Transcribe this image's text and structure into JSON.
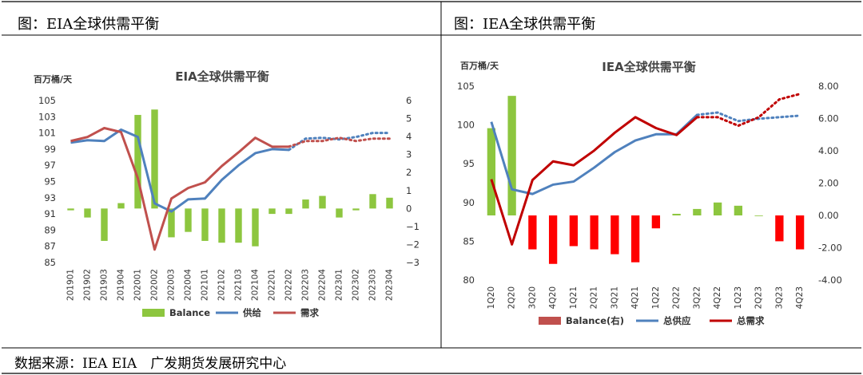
{
  "panel_titles": {
    "left": "图：EIA全球供需平衡",
    "right": "图：IEA全球供需平衡"
  },
  "footer": {
    "source": "数据来源：IEA EIA　广发期货发展研究中心"
  },
  "colors": {
    "green": "#8DC63F",
    "blue": "#4F81BD",
    "red_line": "#C0504D",
    "red_bar": "#FF0000",
    "dark_red": "#C00000"
  },
  "chart_data": [
    {
      "type": "bar+line",
      "title": "EIA全球供需平衡",
      "ylabel": "百万桶/天",
      "categories": [
        "201901",
        "201902",
        "201903",
        "201904",
        "202001",
        "202002",
        "202003",
        "202004",
        "202101",
        "202102",
        "202103",
        "202104",
        "202201",
        "202202",
        "202203",
        "202204",
        "202301",
        "202302",
        "202303",
        "202304"
      ],
      "ylim": [
        85,
        105
      ],
      "y_ticks": [
        "85",
        "87",
        "89",
        "91",
        "93",
        "95",
        "97",
        "99",
        "101",
        "103",
        "105"
      ],
      "y2lim": [
        -3,
        6
      ],
      "y2_ticks": [
        "−3",
        "−2",
        "−1",
        "0",
        "1",
        "2",
        "3",
        "4",
        "5",
        "6"
      ],
      "series": [
        {
          "name": "Balance",
          "type": "bar",
          "axis": "right",
          "values": [
            -0.1,
            -0.5,
            -1.8,
            0.3,
            5.2,
            5.5,
            -1.6,
            -1.3,
            -1.8,
            -1.9,
            -1.9,
            -2.1,
            -0.3,
            -0.3,
            0.5,
            0.7,
            -0.5,
            -0.1,
            0.8,
            0.6
          ]
        },
        {
          "name": "供给",
          "type": "line",
          "axis": "left",
          "values": [
            99.8,
            100.1,
            100.0,
            101.4,
            100.5,
            92.3,
            91.3,
            92.8,
            92.9,
            95.2,
            97.0,
            98.5,
            99.0,
            98.9,
            100.3,
            100.4,
            100.2,
            100.5,
            101.0,
            101.0
          ],
          "dashed_from": 13
        },
        {
          "name": "需求",
          "type": "line",
          "axis": "left",
          "values": [
            100.0,
            100.5,
            101.6,
            101.1,
            95.4,
            86.6,
            92.9,
            94.2,
            94.9,
            96.9,
            98.6,
            100.4,
            99.3,
            99.3,
            100.0,
            100.0,
            100.4,
            100.0,
            100.3,
            100.3
          ],
          "dashed_from": 13
        }
      ],
      "legend": [
        "Balance",
        "供给",
        "需求"
      ]
    },
    {
      "type": "bar+line",
      "title": "IEA全球供需平衡",
      "ylabel": "百万桶/天",
      "categories": [
        "1Q20",
        "2Q20",
        "3Q20",
        "4Q20",
        "1Q21",
        "2Q21",
        "3Q21",
        "4Q21",
        "1Q22",
        "2Q22",
        "3Q22",
        "4Q22",
        "1Q23",
        "2Q23",
        "3Q23",
        "4Q23"
      ],
      "ylim": [
        80,
        105
      ],
      "y_ticks": [
        "80",
        "85",
        "90",
        "95",
        "100",
        "105"
      ],
      "y2lim": [
        -4,
        8
      ],
      "y2_ticks": [
        "-4.00",
        "-2.00",
        "0.00",
        "2.00",
        "4.00",
        "6.00",
        "8.00"
      ],
      "series": [
        {
          "name": "Balance(右)",
          "type": "bar",
          "axis": "right",
          "values": [
            5.4,
            7.4,
            -2.1,
            -3.0,
            -1.9,
            -2.1,
            -2.4,
            -2.9,
            -0.8,
            0.1,
            0.4,
            0.8,
            0.6,
            0.0,
            -1.6,
            -2.1
          ]
        },
        {
          "name": "总供应",
          "type": "line",
          "axis": "left",
          "values": [
            100.4,
            91.7,
            91.1,
            92.3,
            92.7,
            94.5,
            96.5,
            98.0,
            98.8,
            98.8,
            101.3,
            101.6,
            100.5,
            100.8,
            101.0,
            101.2
          ],
          "dashed_from": 10
        },
        {
          "name": "总需求",
          "type": "line",
          "axis": "left",
          "values": [
            93.0,
            84.6,
            92.9,
            95.3,
            94.8,
            96.7,
            99.0,
            101.0,
            99.6,
            98.7,
            101.0,
            101.0,
            99.9,
            101.0,
            103.3,
            104.0
          ],
          "dashed_from": 10
        }
      ],
      "legend": [
        "Balance(右)",
        "总供应",
        "总需求"
      ]
    }
  ]
}
